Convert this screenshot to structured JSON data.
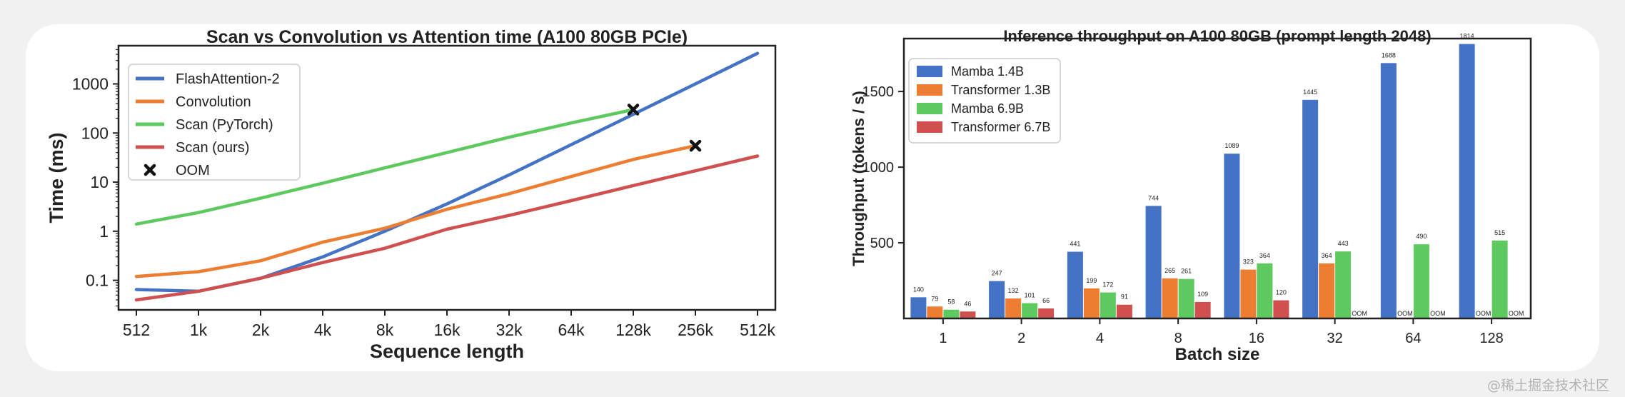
{
  "watermark": "@稀土掘金技术社区",
  "colors": {
    "blue": "#4472c4",
    "orange": "#ed7d31",
    "green": "#5ec95e",
    "red": "#d05050",
    "oom_marker": "#111111"
  },
  "chart_data": [
    {
      "type": "line",
      "title": "Scan vs Convolution vs Attention time (A100 80GB PCIe)",
      "xlabel": "Sequence length",
      "ylabel": "Time (ms)",
      "y_scale": "log",
      "ylim": [
        0.025,
        6000
      ],
      "x": [
        "512",
        "1k",
        "2k",
        "4k",
        "8k",
        "16k",
        "32k",
        "64k",
        "128k",
        "256k",
        "512k"
      ],
      "y_ticks": [
        {
          "value": 0.1,
          "label": "0.1"
        },
        {
          "value": 1,
          "label": "1"
        },
        {
          "value": 10,
          "label": "10"
        },
        {
          "value": 100,
          "label": "100"
        },
        {
          "value": 1000,
          "label": "1000"
        }
      ],
      "grid": false,
      "legend_position": "top-left",
      "series": [
        {
          "name": "FlashAttention-2",
          "color": "#4472c4",
          "values": [
            0.065,
            0.06,
            0.11,
            0.3,
            1.0,
            3.6,
            14,
            58,
            240,
            1000,
            4200
          ]
        },
        {
          "name": "Convolution",
          "color": "#ed7d31",
          "values": [
            0.12,
            0.15,
            0.25,
            0.6,
            1.15,
            2.8,
            5.8,
            13,
            29,
            55,
            null
          ]
        },
        {
          "name": "Scan (PyTorch)",
          "color": "#5ec95e",
          "values": [
            1.4,
            2.4,
            4.7,
            9.5,
            19.5,
            40,
            82,
            160,
            300,
            null,
            null
          ]
        },
        {
          "name": "Scan (ours)",
          "color": "#d05050",
          "values": [
            0.04,
            0.06,
            0.11,
            0.23,
            0.45,
            1.1,
            2.1,
            4.2,
            8.5,
            17,
            34
          ]
        }
      ],
      "oom_label": "OOM",
      "oom_points": [
        {
          "x": "128k",
          "y": 300
        },
        {
          "x": "256k",
          "y": 55
        }
      ]
    },
    {
      "type": "bar",
      "title": "Inference throughput on A100 80GB (prompt length 2048)",
      "xlabel": "Batch size",
      "ylabel": "Throughput (tokens / s)",
      "ylim": [
        0,
        1850
      ],
      "y_ticks": [
        500,
        1000,
        1500
      ],
      "categories": [
        "1",
        "2",
        "4",
        "8",
        "16",
        "32",
        "64",
        "128"
      ],
      "grid": false,
      "legend_position": "top-left",
      "missing_label": "OOM",
      "series": [
        {
          "name": "Mamba 1.4B",
          "color": "#4472c4",
          "values": [
            140,
            247,
            441,
            744,
            1089,
            1445,
            1688,
            1814
          ],
          "labels": [
            "140",
            "247",
            "441",
            "744",
            "1089",
            "1445",
            "1688",
            "1814"
          ]
        },
        {
          "name": "Transformer 1.3B",
          "color": "#ed7d31",
          "values": [
            79,
            132,
            199,
            265,
            323,
            364,
            null,
            null
          ],
          "labels": [
            "79",
            "132",
            "199",
            "265",
            "323",
            "364",
            "OOM",
            "OOM"
          ]
        },
        {
          "name": "Mamba 6.9B",
          "color": "#5ec95e",
          "values": [
            58,
            101,
            172,
            261,
            364,
            443,
            490,
            515
          ],
          "labels": [
            "58",
            "101",
            "172",
            "261",
            "364",
            "443",
            "490",
            "515"
          ]
        },
        {
          "name": "Transformer 6.7B",
          "color": "#d05050",
          "values": [
            46,
            66,
            91,
            109,
            120,
            null,
            null,
            null
          ],
          "labels": [
            "46",
            "66",
            "91",
            "109",
            "120",
            "OOM",
            "OOM",
            "OOM"
          ]
        }
      ]
    }
  ]
}
